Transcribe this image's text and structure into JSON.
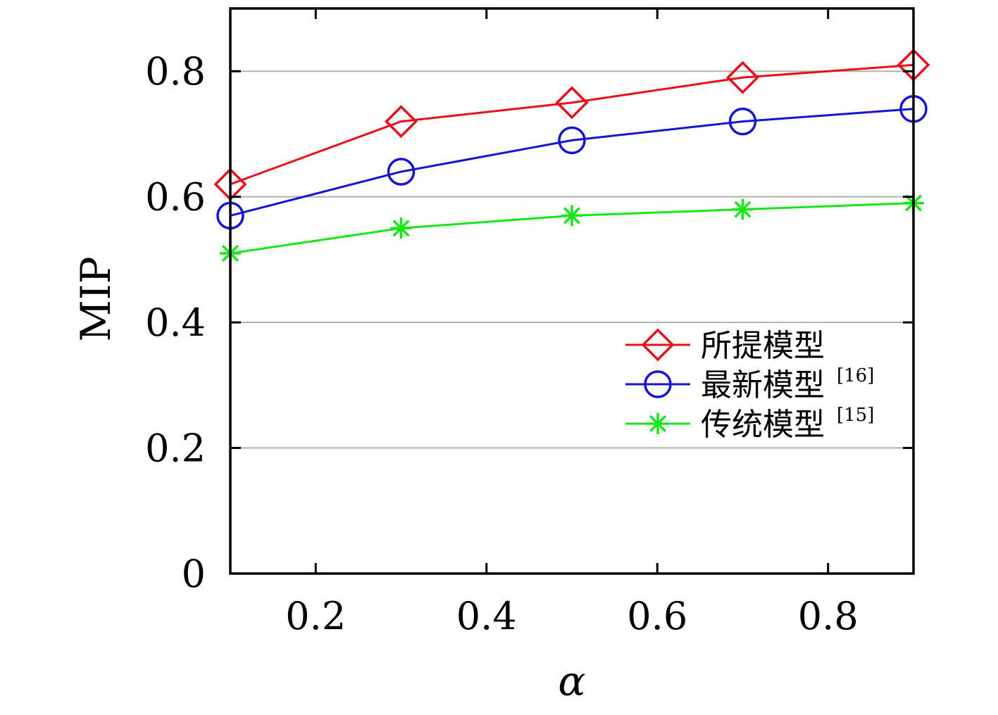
{
  "chart_data": {
    "type": "line",
    "title": "",
    "xlabel": "α",
    "ylabel": "MIP",
    "xlim": [
      0.1,
      0.9
    ],
    "ylim": [
      0,
      0.9
    ],
    "xticks": [
      0.2,
      0.4,
      0.6,
      0.8
    ],
    "xtick_labels": [
      "0.2",
      "0.4",
      "0.6",
      "0.8"
    ],
    "yticks": [
      0,
      0.2,
      0.4,
      0.6,
      0.8
    ],
    "ytick_labels": [
      "0",
      "0.2",
      "0.4",
      "0.6",
      "0.8"
    ],
    "grid": "horizontal",
    "legend_position": "center-right",
    "x": [
      0.1,
      0.3,
      0.5,
      0.7,
      0.9
    ],
    "series": [
      {
        "name": "所提模型",
        "citation": "",
        "color": "#e8101a",
        "marker": "diamond",
        "values": [
          0.62,
          0.72,
          0.75,
          0.79,
          0.81
        ]
      },
      {
        "name": "最新模型",
        "citation": "[16]",
        "color": "#1414d2",
        "marker": "circle",
        "values": [
          0.57,
          0.64,
          0.69,
          0.72,
          0.74
        ]
      },
      {
        "name": "传统模型",
        "citation": "[15]",
        "color": "#19e619",
        "marker": "asterisk",
        "values": [
          0.51,
          0.55,
          0.57,
          0.58,
          0.59
        ]
      }
    ]
  }
}
